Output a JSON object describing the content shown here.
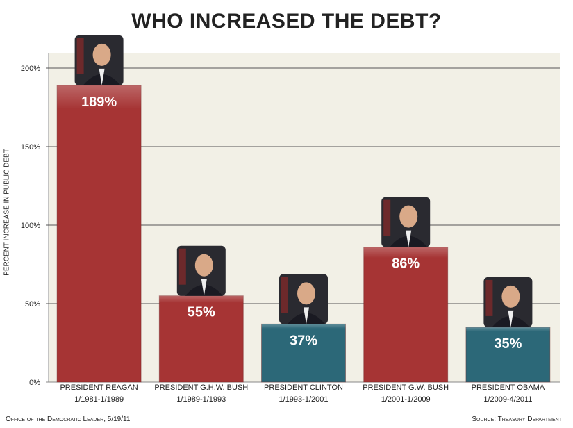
{
  "chart_data": {
    "type": "bar",
    "title": "WHO INCREASED THE DEBT?",
    "ylabel": "PERCENT INCREASE IN PUBLIC DEBT",
    "xlabel": "",
    "ylim": [
      0,
      200
    ],
    "yticks": [
      "0%",
      "50%",
      "100%",
      "150%",
      "200%"
    ],
    "grid": true,
    "categories": [
      {
        "name": "PRESIDENT REAGAN",
        "term": "1/1981-1/1989"
      },
      {
        "name": "PRESIDENT G.H.W. BUSH",
        "term": "1/1989-1/1993"
      },
      {
        "name": "PRESIDENT CLINTON",
        "term": "1/1993-1/2001"
      },
      {
        "name": "PRESIDENT G.W. BUSH",
        "term": "1/2001-1/2009"
      },
      {
        "name": "PRESIDENT OBAMA",
        "term": "1/2009-4/2011"
      }
    ],
    "values": [
      189,
      55,
      37,
      86,
      35
    ],
    "data_labels": [
      "189%",
      "55%",
      "37%",
      "86%",
      "35%"
    ],
    "bar_colors": [
      "#a63434",
      "#a63434",
      "#2c6878",
      "#a63434",
      "#2c6878"
    ],
    "photos": [
      "reagan-portrait",
      "ghw-bush-portrait",
      "clinton-portrait",
      "gw-bush-portrait",
      "obama-portrait"
    ]
  },
  "footer": {
    "left": "Office of the Democratic Leader, 5/19/11",
    "right": "Source: Treasury Department"
  }
}
